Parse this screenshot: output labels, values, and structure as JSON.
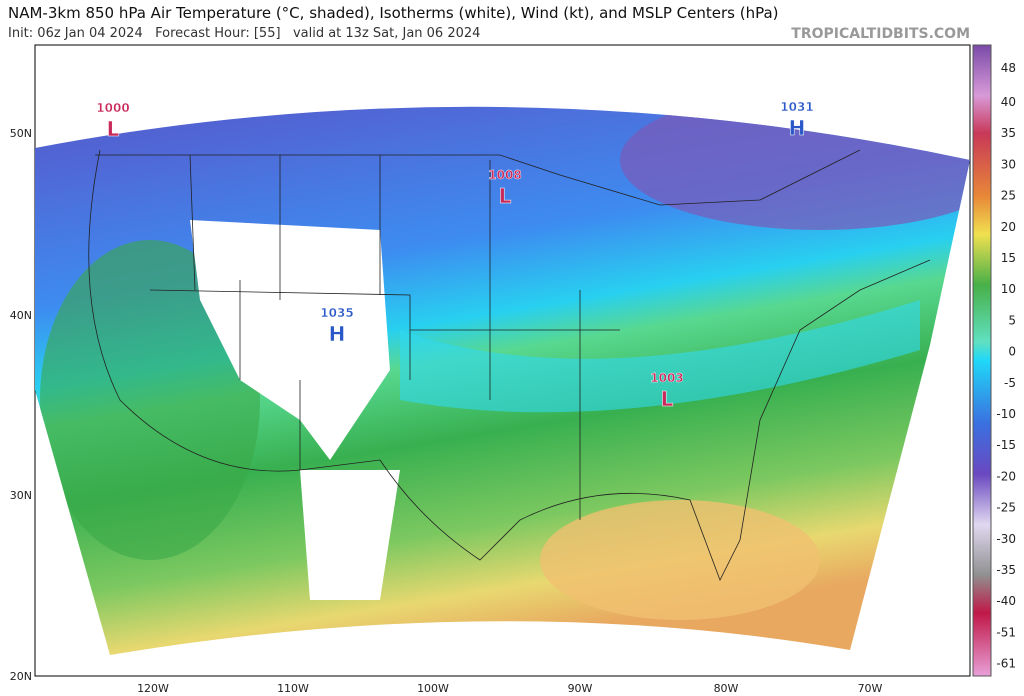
{
  "header": {
    "title": "NAM-3km 850 hPa Air Temperature (°C, shaded), Isotherms (white), Wind (kt), and MSLP Centers (hPa)",
    "init": "Init: 06z Jan 04 2024   Forecast Hour: [55]   valid at 13z Sat, Jan 06 2024",
    "watermark": "TROPICALTIDBITS.COM"
  },
  "map": {
    "lat_labels": [
      "50N",
      "40N",
      "30N",
      "20N"
    ],
    "lon_labels": [
      "120W",
      "110W",
      "100W",
      "90W",
      "80W",
      "70W"
    ],
    "centers": [
      {
        "value": "1000",
        "symbol": "L"
      },
      {
        "value": "1008",
        "symbol": "L"
      },
      {
        "value": "1003",
        "symbol": "L"
      },
      {
        "value": "1031",
        "symbol": "H"
      },
      {
        "value": "1035",
        "symbol": "H"
      }
    ]
  },
  "colorbar": {
    "ticks": [
      "48",
      "40",
      "35",
      "30",
      "25",
      "20",
      "15",
      "10",
      "5",
      "0",
      "-5",
      "-10",
      "-15",
      "-20",
      "-25",
      "-30",
      "-35",
      "-40",
      "-51",
      "-61"
    ]
  }
}
